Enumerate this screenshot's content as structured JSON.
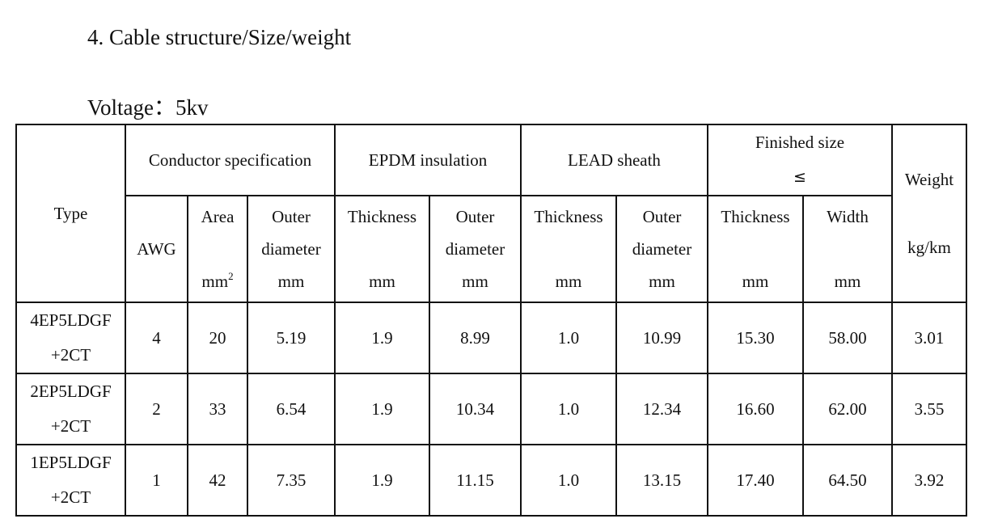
{
  "heading": "4. Cable structure/Size/weight",
  "voltage": "Voltage：5kv",
  "table": {
    "group_headers": {
      "type": "Type",
      "conductor": "Conductor specification",
      "insulation": "EPDM insulation",
      "sheath": "LEAD sheath",
      "finished_line1": "Finished size",
      "finished_line2": "≤",
      "weight": "Weight",
      "weight_unit": "kg/km"
    },
    "sub_headers": {
      "awg": "AWG",
      "area": "Area",
      "area_unit_base": "mm",
      "area_unit_sup": "2",
      "cond_od_1": "Outer",
      "cond_od_2": "diameter",
      "cond_od_unit": "mm",
      "ins_thick": "Thickness",
      "ins_thick_unit": "mm",
      "ins_od_1": "Outer",
      "ins_od_2": "diameter",
      "ins_od_unit": "mm",
      "sh_thick": "Thickness",
      "sh_thick_unit": "mm",
      "sh_od_1": "Outer",
      "sh_od_2": "diameter",
      "sh_od_unit": "mm",
      "fin_thick": "Thickness",
      "fin_thick_unit": "mm",
      "fin_width": "Width",
      "fin_width_unit": "mm"
    },
    "rows": [
      {
        "type_1": "4EP5LDGF",
        "type_2": "+2CT",
        "awg": "4",
        "area": "20",
        "cond_od": "5.19",
        "ins_thick": "1.9",
        "ins_od": "8.99",
        "sh_thick": "1.0",
        "sh_od": "10.99",
        "fin_thick": "15.30",
        "fin_width": "58.00",
        "weight": "3.01"
      },
      {
        "type_1": "2EP5LDGF",
        "type_2": "+2CT",
        "awg": "2",
        "area": "33",
        "cond_od": "6.54",
        "ins_thick": "1.9",
        "ins_od": "10.34",
        "sh_thick": "1.0",
        "sh_od": "12.34",
        "fin_thick": "16.60",
        "fin_width": "62.00",
        "weight": "3.55"
      },
      {
        "type_1": "1EP5LDGF",
        "type_2": "+2CT",
        "awg": "1",
        "area": "42",
        "cond_od": "7.35",
        "ins_thick": "1.9",
        "ins_od": "11.15",
        "sh_thick": "1.0",
        "sh_od": "13.15",
        "fin_thick": "17.40",
        "fin_width": "64.50",
        "weight": "3.92"
      }
    ]
  }
}
